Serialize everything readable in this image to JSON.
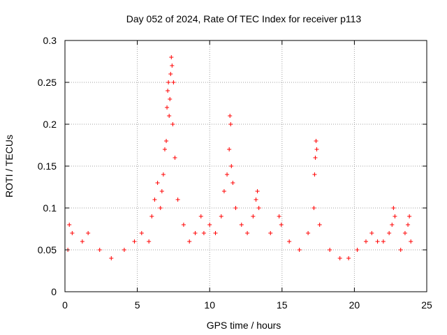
{
  "chart_data": {
    "type": "scatter",
    "title": "Day 052 of 2024, Rate Of TEC Index for receiver p113",
    "xlabel": "GPS time / hours",
    "ylabel": "ROTI / TECUs",
    "xlim": [
      0,
      25
    ],
    "ylim": [
      0,
      0.3
    ],
    "x_ticks": [
      "0",
      "5",
      "10",
      "15",
      "20",
      "25"
    ],
    "y_ticks": [
      "0",
      "0.05",
      "0.1",
      "0.15",
      "0.2",
      "0.25",
      "0.3"
    ],
    "grid": true,
    "marker": "plus",
    "color": "#ff0000",
    "series": [
      {
        "x": [
          0.2,
          0.3,
          0.5,
          1.2,
          1.6,
          2.4,
          3.2,
          4.1,
          4.8,
          5.3,
          5.8,
          6.0,
          6.2,
          6.4,
          6.6,
          6.7,
          6.8,
          6.9,
          7.0,
          7.05,
          7.1,
          7.15,
          7.2,
          7.25,
          7.3,
          7.35,
          7.4,
          7.45,
          7.5,
          7.6,
          7.8,
          8.2,
          8.6,
          9.0,
          9.4,
          9.6,
          10.0,
          10.4,
          10.8,
          11.0,
          11.2,
          11.35,
          11.4,
          11.45,
          11.5,
          11.6,
          11.8,
          12.2,
          12.6,
          13.0,
          13.2,
          13.3,
          13.4,
          14.2,
          14.8,
          14.95,
          15.5,
          16.2,
          16.8,
          17.2,
          17.25,
          17.3,
          17.35,
          17.4,
          17.6,
          18.3,
          19.0,
          19.6,
          20.2,
          20.8,
          21.2,
          21.6,
          22.0,
          22.4,
          22.6,
          22.7,
          22.8,
          23.2,
          23.5,
          23.7,
          23.8,
          23.9
        ],
        "y": [
          0.05,
          0.08,
          0.07,
          0.06,
          0.07,
          0.05,
          0.04,
          0.05,
          0.06,
          0.07,
          0.06,
          0.09,
          0.11,
          0.13,
          0.1,
          0.12,
          0.14,
          0.17,
          0.18,
          0.22,
          0.24,
          0.25,
          0.21,
          0.23,
          0.26,
          0.28,
          0.27,
          0.2,
          0.25,
          0.16,
          0.11,
          0.08,
          0.06,
          0.07,
          0.09,
          0.07,
          0.08,
          0.07,
          0.09,
          0.12,
          0.14,
          0.17,
          0.21,
          0.2,
          0.15,
          0.13,
          0.1,
          0.08,
          0.07,
          0.09,
          0.11,
          0.12,
          0.1,
          0.07,
          0.09,
          0.08,
          0.06,
          0.05,
          0.07,
          0.1,
          0.14,
          0.16,
          0.18,
          0.17,
          0.08,
          0.05,
          0.04,
          0.04,
          0.05,
          0.06,
          0.07,
          0.06,
          0.06,
          0.07,
          0.08,
          0.1,
          0.09,
          0.05,
          0.07,
          0.08,
          0.09,
          0.06
        ]
      }
    ]
  }
}
